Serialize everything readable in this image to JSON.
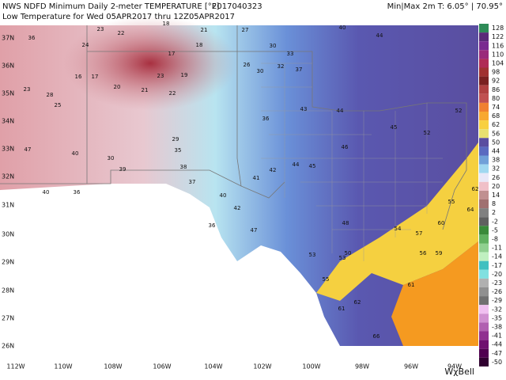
{
  "header": {
    "title": "NWS NDFD Minimum Daily 2-meter TEMPERATURE [°F]",
    "run": "2017040323",
    "subtitle": "Low Temperature for Wed 05APR2017 thru 12Z05APR2017",
    "minmax": "Min|Max 2m T:  6.05°  |  70.95°"
  },
  "colorbar": {
    "labels": [
      128,
      122,
      116,
      110,
      104,
      98,
      92,
      86,
      80,
      74,
      68,
      62,
      56,
      50,
      44,
      38,
      32,
      26,
      20,
      14,
      8,
      2,
      -2,
      -5,
      -8,
      -11,
      -14,
      -17,
      -20,
      -23,
      -26,
      -29,
      -32,
      -35,
      -38,
      -41,
      -44,
      -47,
      -50
    ],
    "colors": [
      "#2e8b57",
      "#5a2a78",
      "#7a2a90",
      "#9a2a7a",
      "#b02a55",
      "#a03030",
      "#7a2020",
      "#b04040",
      "#c05050",
      "#f08030",
      "#f8a830",
      "#f8d040",
      "#e8e070",
      "#5a4ea0",
      "#5a6ac0",
      "#70a0d8",
      "#a0d8f0",
      "#e8e8f8",
      "#f0c0c8",
      "#c09090",
      "#a07070",
      "#808080",
      "#606060",
      "#3a8a3a",
      "#60b060",
      "#90d090",
      "#c0f0c0",
      "#40c0c0",
      "#80e0e0",
      "#b0b0b0",
      "#909090",
      "#707070",
      "#f0c0f0",
      "#d090d0",
      "#b060b0",
      "#903090",
      "#701070",
      "#500050",
      "#300030"
    ]
  },
  "longitudes": [
    "112W",
    "110W",
    "108W",
    "106W",
    "104W",
    "102W",
    "100W",
    "98W",
    "96W",
    "94W"
  ],
  "latitudes": [
    "37N",
    "36N",
    "35N",
    "34N",
    "33N",
    "32N",
    "31N",
    "30N",
    "29N",
    "28N",
    "27N",
    "26N"
  ],
  "stations": [
    36,
    23,
    22,
    18,
    21,
    27,
    24,
    17,
    18,
    30,
    33,
    40,
    44,
    26,
    30,
    32,
    37,
    16,
    17,
    23,
    19,
    25,
    28,
    23,
    20,
    21,
    22,
    36,
    43,
    44,
    29,
    35,
    38,
    30,
    39,
    40,
    47,
    40,
    36,
    37,
    40,
    42,
    41,
    42,
    44,
    45,
    46,
    45,
    52,
    52,
    48,
    53,
    55,
    50,
    54,
    56,
    57,
    59,
    61,
    62,
    61,
    66,
    55,
    60,
    62,
    64,
    36,
    47,
    53
  ],
  "logo": "WχBell"
}
